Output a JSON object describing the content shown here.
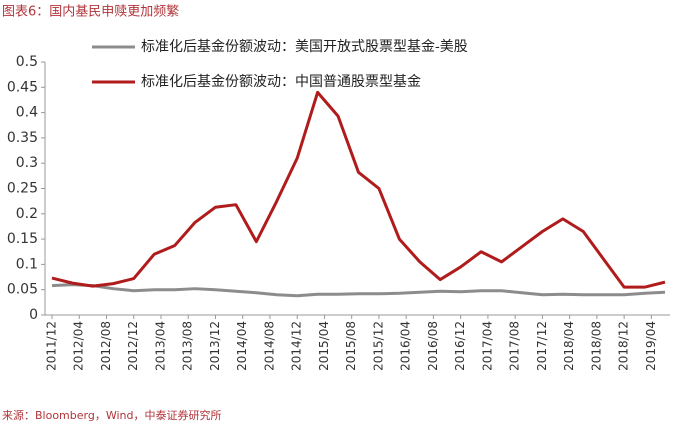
{
  "chart_data": {
    "type": "line",
    "title": "图表6：国内基民申赎更加频繁",
    "source": "来源：Bloomberg，Wind，中泰证券研究所",
    "x": [
      "2011/12",
      "2012/03",
      "2012/06",
      "2012/09",
      "2012/12",
      "2013/03",
      "2013/06",
      "2013/09",
      "2013/12",
      "2014/03",
      "2014/06",
      "2014/09",
      "2014/12",
      "2015/03",
      "2015/06",
      "2015/09",
      "2015/12",
      "2016/03",
      "2016/06",
      "2016/09",
      "2016/12",
      "2017/03",
      "2017/06",
      "2017/09",
      "2017/12",
      "2018/03",
      "2018/06",
      "2018/09",
      "2018/12",
      "2019/03",
      "2019/06"
    ],
    "xticks": [
      "2011/12",
      "2012/04",
      "2012/08",
      "2012/12",
      "2013/04",
      "2013/08",
      "2013/12",
      "2014/04",
      "2014/08",
      "2014/12",
      "2015/04",
      "2015/08",
      "2015/12",
      "2016/04",
      "2016/08",
      "2016/12",
      "2017/04",
      "2017/08",
      "2017/12",
      "2018/04",
      "2018/08",
      "2018/12",
      "2019/04"
    ],
    "series": [
      {
        "name": "标准化后基金份额波动：美国开放式股票型基金-美股",
        "color": "#8c8c8c",
        "values": [
          0.058,
          0.06,
          0.058,
          0.052,
          0.048,
          0.05,
          0.05,
          0.052,
          0.05,
          0.047,
          0.044,
          0.04,
          0.038,
          0.041,
          0.041,
          0.042,
          0.042,
          0.043,
          0.045,
          0.047,
          0.046,
          0.048,
          0.048,
          0.044,
          0.04,
          0.041,
          0.04,
          0.04,
          0.04,
          0.043,
          0.045
        ]
      },
      {
        "name": "标准化后基金份额波动：中国普通股票型基金",
        "color": "#b01c1c",
        "values": [
          0.073,
          0.063,
          0.057,
          0.062,
          0.072,
          0.12,
          0.137,
          0.183,
          0.213,
          0.218,
          0.145,
          0.225,
          0.31,
          0.44,
          0.393,
          0.282,
          0.25,
          0.15,
          0.105,
          0.07,
          0.095,
          0.125,
          0.105,
          0.135,
          0.165,
          0.19,
          0.165,
          0.11,
          0.055,
          0.055,
          0.065
        ]
      }
    ],
    "ylim": [
      0,
      0.5
    ],
    "yticks": [
      0,
      0.05,
      0.1,
      0.15,
      0.2,
      0.25,
      0.3,
      0.35,
      0.4,
      0.45,
      0.5
    ],
    "grid": false
  }
}
